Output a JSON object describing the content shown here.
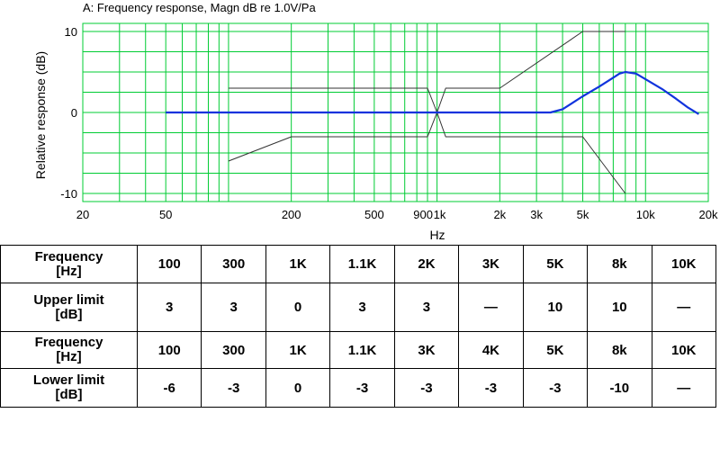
{
  "chart_data": {
    "type": "line",
    "title": "A: Frequency response, Magn dB re 1.0V/Pa",
    "xlabel": "Hz",
    "ylabel": "Relative response (dB)",
    "xscale": "log",
    "xlim": [
      20,
      20000
    ],
    "ylim": [
      -11,
      11
    ],
    "grid": true,
    "grid_color": "#00cc33",
    "x_ticks": [
      {
        "value": 20,
        "label": "20"
      },
      {
        "value": 50,
        "label": "50"
      },
      {
        "value": 200,
        "label": "200"
      },
      {
        "value": 500,
        "label": "500"
      },
      {
        "value": 900,
        "label": "900"
      },
      {
        "value": 1000,
        "label": "1k"
      },
      {
        "value": 2000,
        "label": "2k"
      },
      {
        "value": 3000,
        "label": "3k"
      },
      {
        "value": 5000,
        "label": "5k"
      },
      {
        "value": 10000,
        "label": "10k"
      },
      {
        "value": 20000,
        "label": "20k"
      }
    ],
    "y_ticks": [
      {
        "value": 10,
        "label": "10"
      },
      {
        "value": 0,
        "label": "0"
      },
      {
        "value": -10,
        "label": "-10"
      }
    ],
    "series": [
      {
        "color": "#333333",
        "x": [
          100,
          900,
          1000,
          1100,
          2000,
          5000,
          8000
        ],
        "y": [
          3,
          3,
          0,
          3,
          3,
          10,
          10
        ]
      },
      {
        "color": "#333333",
        "x": [
          100,
          200,
          900,
          1000,
          1100,
          5000,
          8000
        ],
        "y": [
          -6,
          -3,
          -3,
          0,
          -3,
          -3,
          -10
        ]
      },
      {
        "color": "#1133dd",
        "x": [
          50,
          3500,
          4000,
          5000,
          6000,
          7000,
          7500,
          8000,
          9000,
          10000,
          12000,
          14000,
          16000,
          18000
        ],
        "y": [
          0,
          0,
          0.4,
          2,
          3.2,
          4.3,
          4.8,
          5,
          4.8,
          4.1,
          2.9,
          1.7,
          0.6,
          -0.2
        ]
      }
    ]
  },
  "table": {
    "rows": [
      {
        "header": [
          "Frequency",
          "[Hz]"
        ],
        "cells": [
          "100",
          "300",
          "1K",
          "1.1K",
          "2K",
          "3K",
          "5K",
          "8k",
          "10K"
        ]
      },
      {
        "header": [
          "Upper limit",
          "[dB]"
        ],
        "cells": [
          "3",
          "3",
          "0",
          "3",
          "3",
          "—",
          "10",
          "10",
          "—"
        ]
      },
      {
        "header": [
          "Frequency",
          "[Hz]"
        ],
        "cells": [
          "100",
          "300",
          "1K",
          "1.1K",
          "3K",
          "4K",
          "5K",
          "8k",
          "10K"
        ]
      },
      {
        "header": [
          "Lower limit",
          "[dB]"
        ],
        "cells": [
          "-6",
          "-3",
          "0",
          "-3",
          "-3",
          "-3",
          "-3",
          "-10",
          "—"
        ]
      }
    ]
  }
}
